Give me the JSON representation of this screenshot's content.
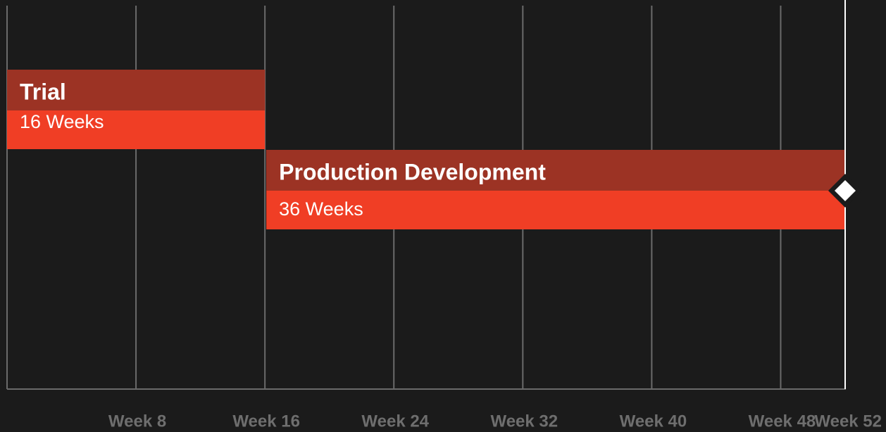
{
  "chart_data": {
    "type": "gantt",
    "tasks": [
      {
        "name": "Trial",
        "duration_label": "16 Weeks",
        "start": 0,
        "end": 16,
        "header_color": "#9c3324",
        "color": "#f03e25",
        "milestone": false
      },
      {
        "name": "Production Development",
        "duration_label": "36 Weeks",
        "start": 16,
        "end": 52,
        "header_color": "#9c3324",
        "color": "#f03e25",
        "milestone": true
      }
    ],
    "xlim": [
      0,
      52
    ],
    "xticks": [
      {
        "value": 8,
        "label": "Week 8"
      },
      {
        "value": 16,
        "label": "Week 16"
      },
      {
        "value": 24,
        "label": "Week 24"
      },
      {
        "value": 32,
        "label": "Week 32"
      },
      {
        "value": 40,
        "label": "Week 40"
      },
      {
        "value": 48,
        "label": "Week 48"
      },
      {
        "value": 52,
        "label": "Week 52"
      }
    ],
    "grid": true
  }
}
